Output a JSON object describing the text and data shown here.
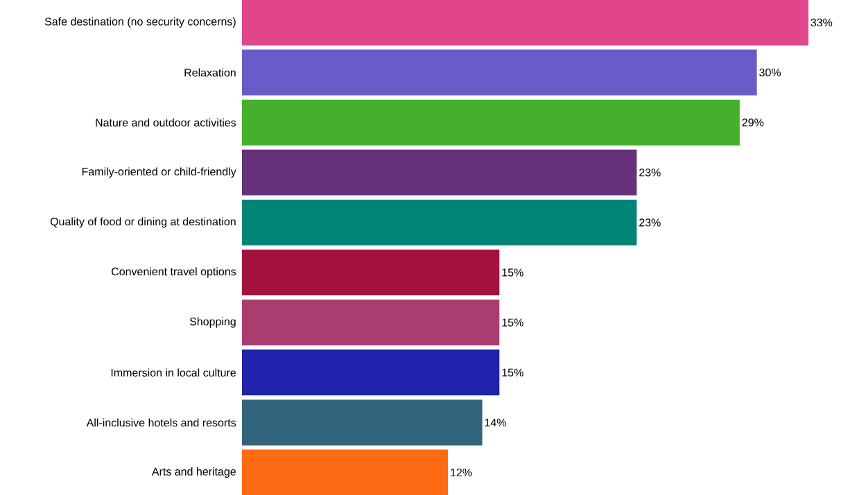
{
  "chart_data": {
    "type": "bar",
    "orientation": "horizontal",
    "categories": [
      "Safe destination (no security concerns)",
      "Relaxation",
      "Nature and outdoor activities",
      "Family-oriented or child-friendly",
      "Quality of food or dining at destination",
      "Convenient travel options",
      "Shopping",
      "Immersion in local culture",
      "All-inclusive hotels and resorts",
      "Arts and heritage"
    ],
    "values": [
      33,
      30,
      29,
      23,
      23,
      15,
      15,
      15,
      14,
      12
    ],
    "value_labels": [
      "33%",
      "30%",
      "29%",
      "23%",
      "23%",
      "15%",
      "15%",
      "15%",
      "14%",
      "12%"
    ],
    "colors": [
      "#e2468a",
      "#6a5cc8",
      "#44b02d",
      "#663178",
      "#028576",
      "#a3123d",
      "#aa3d6f",
      "#1f22ab",
      "#33647d",
      "#ff6a14"
    ]
  }
}
